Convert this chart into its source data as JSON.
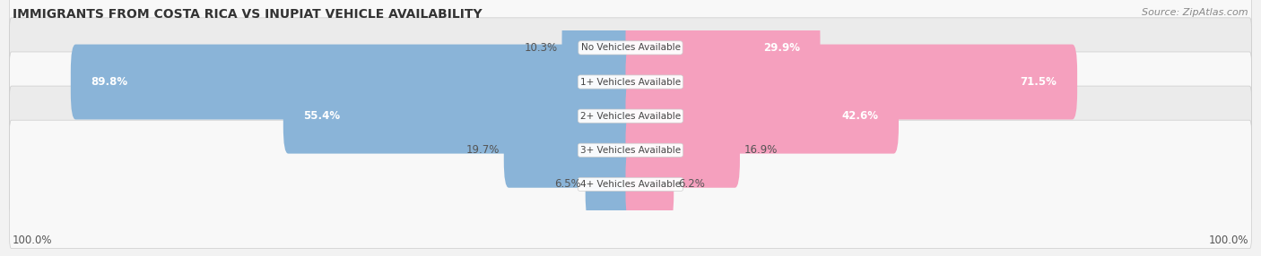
{
  "title": "IMMIGRANTS FROM COSTA RICA VS INUPIAT VEHICLE AVAILABILITY",
  "source": "Source: ZipAtlas.com",
  "categories": [
    "No Vehicles Available",
    "1+ Vehicles Available",
    "2+ Vehicles Available",
    "3+ Vehicles Available",
    "4+ Vehicles Available"
  ],
  "costa_rica_values": [
    10.3,
    89.8,
    55.4,
    19.7,
    6.5
  ],
  "inupiat_values": [
    29.9,
    71.5,
    42.6,
    16.9,
    6.2
  ],
  "costa_rica_color": "#8ab4d8",
  "costa_rica_color_dark": "#6699cc",
  "inupiat_color": "#f5a0be",
  "inupiat_color_dark": "#e8648a",
  "costa_rica_label": "Immigrants from Costa Rica",
  "inupiat_label": "Inupiat",
  "bar_height": 0.6,
  "background_color": "#f2f2f2",
  "row_bg_odd": "#f8f8f8",
  "row_bg_even": "#ebebeb",
  "max_value": 100.0,
  "footer_label": "100.0%",
  "label_fontsize": 8.5,
  "title_fontsize": 10,
  "source_fontsize": 8
}
